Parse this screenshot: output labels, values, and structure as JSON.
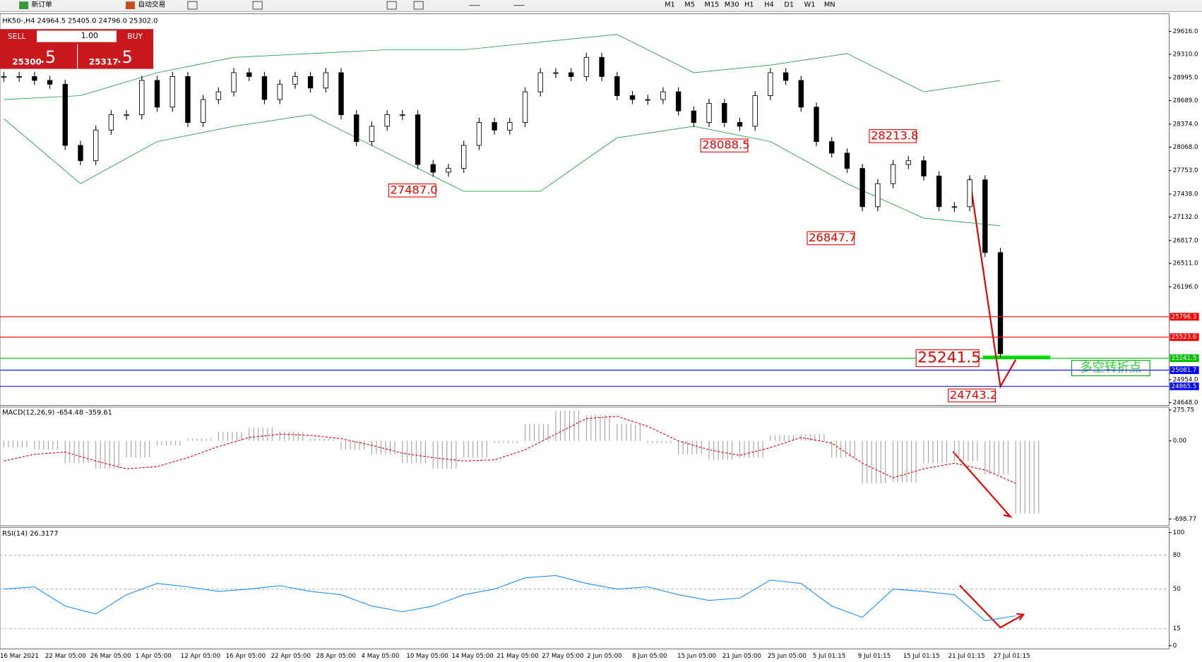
{
  "toolbar": {
    "new_order": "新订单",
    "auto_trading": "自动交易",
    "timeframes": [
      "M1",
      "M5",
      "M15",
      "M30",
      "H1",
      "H4",
      "D1",
      "W1",
      "MN"
    ]
  },
  "trade_panel": {
    "sell": "SELL",
    "lots": "1.00",
    "buy": "BUY",
    "sell_price": "25300",
    "sell_pips": ".5",
    "buy_price": "25317",
    "buy_pips": ".5"
  },
  "chart": {
    "header": "HK50-,H4  24964.5 25405.0 24796.0 25302.0",
    "ylim": [
      24648,
      29616
    ],
    "price_ticks": [
      {
        "value": 29616,
        "label": "29616.0"
      },
      {
        "value": 29310,
        "label": "29310.0"
      },
      {
        "value": 28995,
        "label": "28995.0"
      },
      {
        "value": 28689,
        "label": "28689.0"
      },
      {
        "value": 28374,
        "label": "28374.0"
      },
      {
        "value": 28068,
        "label": "28068.0"
      },
      {
        "value": 27753,
        "label": "27753.0"
      },
      {
        "value": 27438,
        "label": "27438.0"
      },
      {
        "value": 27132,
        "label": "27132.0"
      },
      {
        "value": 26817,
        "label": "26817.0"
      },
      {
        "value": 26511,
        "label": "26511.0"
      },
      {
        "value": 26196,
        "label": "26196.0"
      },
      {
        "value": 24954,
        "label": "24954.0"
      },
      {
        "value": 24648,
        "label": "24648.0"
      }
    ],
    "closes": [
      29012,
      29012,
      28960,
      28909,
      28090,
      27885,
      28295,
      28500,
      28500,
      28960,
      28602,
      29012,
      28397,
      28704,
      28807,
      29063,
      29012,
      28704,
      28909,
      29012,
      28858,
      29063,
      28500,
      28141,
      28346,
      28500,
      28500,
      27834,
      27731,
      27782,
      28090,
      28397,
      28295,
      28397,
      28807,
      29063,
      29063,
      29012,
      29268,
      29012,
      28756,
      28704,
      28704,
      28807,
      28551,
      28397,
      28653,
      28397,
      28346,
      28756,
      29063,
      28960,
      28602,
      28141,
      27987,
      27782,
      27270,
      27578,
      27834,
      27885,
      27680,
      27270,
      27270,
      27629,
      26656,
      25302
    ],
    "bands_upper": [
      28704,
      28756,
      29063,
      29268,
      29319,
      29370,
      29370,
      29473,
      29575,
      29063,
      29165,
      29319,
      28807,
      28960
    ],
    "bands_lower": [
      28448,
      27578,
      28141,
      28346,
      28500,
      27987,
      27475,
      27475,
      28192,
      28346,
      28141,
      27578,
      27117,
      27014
    ],
    "levels": [
      {
        "value": 25796.3,
        "color": "#ff0000"
      },
      {
        "value": 25523.6,
        "color": "#ff0000"
      },
      {
        "value": 25241.5,
        "color": "#00c000"
      },
      {
        "value": 25081.7,
        "color": "#0000ff"
      },
      {
        "value": 24865.5,
        "color": "#0000ff"
      }
    ],
    "annotations": [
      28088.5,
      28213.8,
      {
        "value": 27487,
        "label": "27487.0"
      },
      26847.7,
      25241.5,
      24743.2
    ],
    "note": "多空转折点"
  },
  "macd": {
    "header": "MACD(12,26,9) -654.48 -359.61",
    "ylim": [
      -753,
      295
    ],
    "ticks": [
      275.75,
      {
        "value": 0,
        "label": "0.00"
      },
      -698.77
    ],
    "histogram": [
      -60,
      -80,
      -200,
      -250,
      -150,
      -40,
      20,
      80,
      120,
      80,
      20,
      -80,
      -120,
      -200,
      -250,
      -150,
      -20,
      150,
      270,
      230,
      150,
      -20,
      -120,
      -170,
      -150,
      50,
      60,
      -150,
      -380,
      -370,
      -200,
      -180,
      -300,
      -650
    ],
    "signal": [
      -180,
      -120,
      -100,
      -180,
      -250,
      -230,
      -150,
      -50,
      30,
      60,
      50,
      20,
      -40,
      -110,
      -150,
      -180,
      -170,
      -80,
      60,
      200,
      220,
      130,
      0,
      -80,
      -130,
      -60,
      30,
      -20,
      -200,
      -330,
      -250,
      -200,
      -260,
      -380
    ]
  },
  "rsi": {
    "header": "RSI(14) 26.3177",
    "ylim": [
      -3,
      104
    ],
    "ticks": [
      100,
      80,
      50,
      15,
      0
    ],
    "values": [
      50,
      52,
      35,
      28,
      45,
      55,
      52,
      48,
      50,
      53,
      48,
      45,
      35,
      30,
      35,
      45,
      50,
      60,
      62,
      55,
      50,
      52,
      45,
      40,
      42,
      58,
      55,
      35,
      25,
      50,
      48,
      45,
      22,
      26.3
    ]
  },
  "time_labels": [
    "16 Mar 2021",
    "22 Mar 05:00",
    "26 Mar 05:00",
    "1 Apr 05:00",
    "12 Apr 05:00",
    "16 Apr 05:00",
    "22 Apr 05:00",
    "28 Apr 05:00",
    "4 May 05:00",
    "10 May 05:00",
    "14 May 05:00",
    "21 May 05:00",
    "27 May 05:00",
    "2 Jun 05:00",
    "8 Jun 05:00",
    "15 Jun 05:00",
    "21 Jun 05:00",
    "25 Jun 05:00",
    "5 Jul 01:15",
    "9 Jul 01:15",
    "15 Jul 01:15",
    "21 Jul 01:15",
    "27 Jul 01:15"
  ]
}
